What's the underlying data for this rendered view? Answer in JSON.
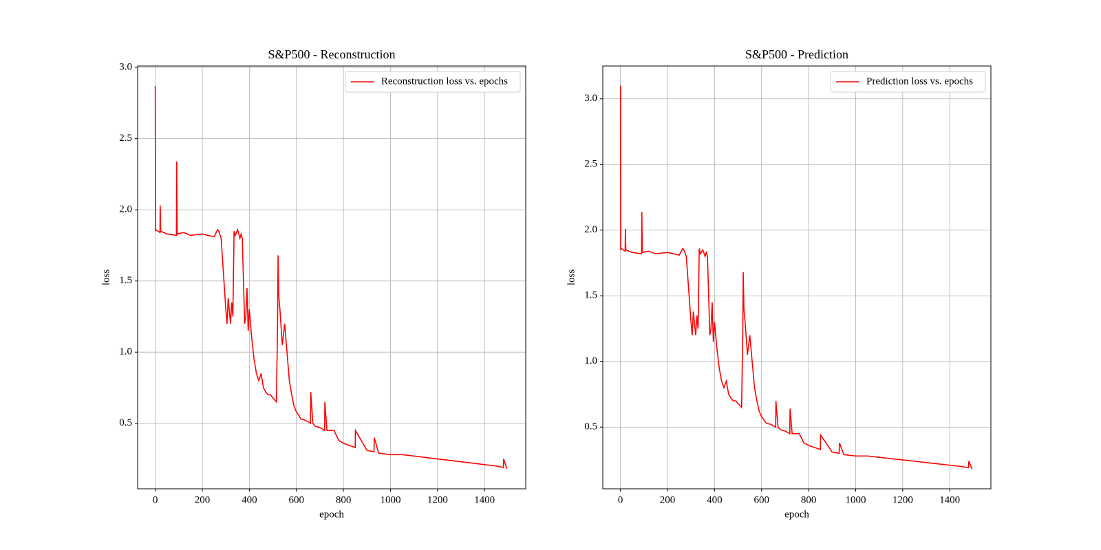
{
  "chart_data": [
    {
      "type": "line",
      "title": "S&P500 - Reconstruction",
      "xlabel": "epoch",
      "ylabel": "loss",
      "xlim": [
        -75,
        1575
      ],
      "ylim": [
        0.04,
        3.01
      ],
      "xticks": [
        0,
        200,
        400,
        600,
        800,
        1000,
        1200,
        1400
      ],
      "yticks": [
        0.5,
        {
          "value": 1,
          "label": "1.0"
        },
        1.5,
        {
          "value": 2,
          "label": "2.0"
        },
        2.5,
        {
          "value": 3,
          "label": "3.0"
        }
      ],
      "grid": true,
      "legend": "upper right",
      "x": [
        0,
        1,
        3,
        20,
        21,
        23,
        50,
        90,
        91,
        93,
        120,
        150,
        200,
        250,
        265,
        270,
        280,
        290,
        300,
        305,
        310,
        320,
        325,
        330,
        335,
        340,
        350,
        360,
        365,
        370,
        380,
        385,
        390,
        395,
        400,
        410,
        420,
        430,
        440,
        450,
        460,
        470,
        480,
        490,
        500,
        515,
        520,
        522,
        525,
        530,
        540,
        550,
        560,
        570,
        580,
        590,
        600,
        620,
        640,
        660,
        661,
        670,
        680,
        700,
        720,
        721,
        730,
        760,
        780,
        800,
        850,
        851,
        900,
        930,
        931,
        950,
        1000,
        1050,
        1100,
        1150,
        1200,
        1250,
        1300,
        1350,
        1400,
        1450,
        1480,
        1481,
        1495
      ],
      "series": [
        {
          "name": "Reconstruction loss vs. epochs",
          "color": "#ff0000",
          "values": [
            2.87,
            1.85,
            1.86,
            1.84,
            2.03,
            1.85,
            1.83,
            1.82,
            2.34,
            1.83,
            1.84,
            1.82,
            1.83,
            1.81,
            1.86,
            1.85,
            1.8,
            1.55,
            1.3,
            1.2,
            1.38,
            1.2,
            1.35,
            1.25,
            1.85,
            1.82,
            1.86,
            1.8,
            1.83,
            1.8,
            1.2,
            1.25,
            1.45,
            1.15,
            1.3,
            1.1,
            0.95,
            0.85,
            0.8,
            0.85,
            0.75,
            0.72,
            0.7,
            0.7,
            0.68,
            0.65,
            1.2,
            1.68,
            1.4,
            1.3,
            1.05,
            1.2,
            1.0,
            0.8,
            0.7,
            0.62,
            0.58,
            0.53,
            0.52,
            0.5,
            0.72,
            0.5,
            0.48,
            0.47,
            0.45,
            0.65,
            0.45,
            0.45,
            0.38,
            0.36,
            0.33,
            0.45,
            0.31,
            0.3,
            0.4,
            0.29,
            0.28,
            0.28,
            0.27,
            0.26,
            0.25,
            0.24,
            0.23,
            0.22,
            0.21,
            0.2,
            0.19,
            0.25,
            0.18
          ]
        }
      ]
    },
    {
      "type": "line",
      "title": "S&P500 - Prediction",
      "xlabel": "epoch",
      "ylabel": "loss",
      "xlim": [
        -75,
        1575
      ],
      "ylim": [
        0.03,
        3.25
      ],
      "xticks": [
        0,
        200,
        400,
        600,
        800,
        1000,
        1200,
        1400
      ],
      "yticks": [
        0.5,
        {
          "value": 1,
          "label": "1.0"
        },
        1.5,
        {
          "value": 2,
          "label": "2.0"
        },
        2.5,
        {
          "value": 3,
          "label": "3.0"
        }
      ],
      "grid": true,
      "legend": "upper right",
      "x": [
        0,
        1,
        3,
        20,
        21,
        23,
        50,
        90,
        91,
        93,
        120,
        150,
        200,
        250,
        265,
        270,
        280,
        290,
        300,
        305,
        310,
        320,
        325,
        330,
        335,
        340,
        350,
        360,
        365,
        370,
        380,
        385,
        390,
        395,
        400,
        410,
        420,
        430,
        440,
        450,
        460,
        470,
        480,
        490,
        500,
        515,
        520,
        522,
        525,
        530,
        540,
        550,
        560,
        570,
        580,
        590,
        600,
        620,
        640,
        660,
        661,
        670,
        680,
        700,
        720,
        721,
        730,
        760,
        780,
        800,
        850,
        851,
        900,
        930,
        931,
        950,
        1000,
        1050,
        1100,
        1150,
        1200,
        1250,
        1300,
        1350,
        1400,
        1450,
        1480,
        1481,
        1495
      ],
      "series": [
        {
          "name": "Prediction loss vs. epochs",
          "color": "#ff0000",
          "values": [
            3.1,
            1.85,
            1.86,
            1.84,
            2.01,
            1.85,
            1.83,
            1.82,
            2.14,
            1.83,
            1.84,
            1.82,
            1.83,
            1.81,
            1.86,
            1.85,
            1.8,
            1.55,
            1.3,
            1.2,
            1.38,
            1.2,
            1.35,
            1.25,
            1.86,
            1.82,
            1.85,
            1.8,
            1.83,
            1.8,
            1.2,
            1.25,
            1.45,
            1.15,
            1.3,
            1.1,
            0.95,
            0.85,
            0.8,
            0.85,
            0.75,
            0.72,
            0.7,
            0.7,
            0.68,
            0.65,
            1.2,
            1.68,
            1.4,
            1.3,
            1.05,
            1.2,
            1.0,
            0.8,
            0.7,
            0.62,
            0.58,
            0.53,
            0.52,
            0.5,
            0.7,
            0.5,
            0.48,
            0.47,
            0.45,
            0.64,
            0.45,
            0.45,
            0.38,
            0.36,
            0.33,
            0.44,
            0.31,
            0.3,
            0.38,
            0.29,
            0.28,
            0.28,
            0.27,
            0.26,
            0.25,
            0.24,
            0.23,
            0.22,
            0.21,
            0.2,
            0.19,
            0.24,
            0.18
          ]
        }
      ]
    }
  ]
}
